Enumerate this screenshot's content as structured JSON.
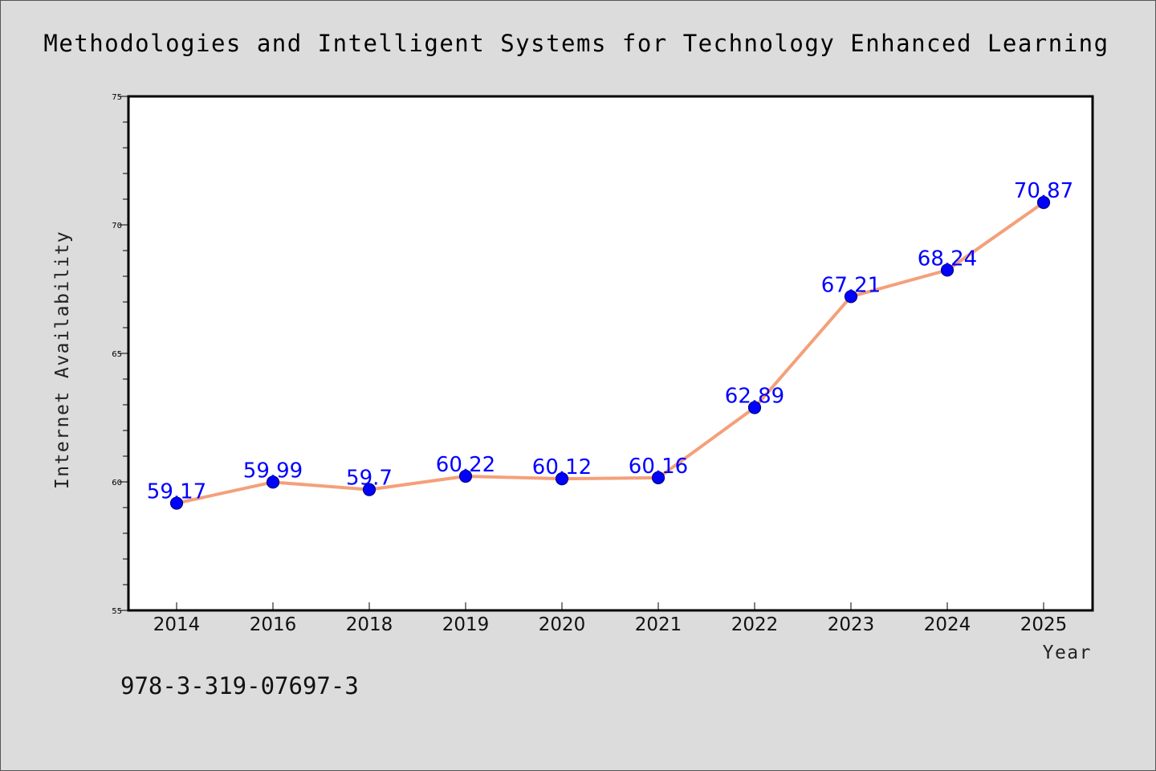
{
  "footnote": "978-3-319-07697-3",
  "chart_data": {
    "type": "line",
    "title": "Methodologies and Intelligent Systems for Technology Enhanced Learning",
    "xlabel": "Year",
    "ylabel": "Internet Availability",
    "categories": [
      "2014",
      "2016",
      "2018",
      "2019",
      "2020",
      "2021",
      "2022",
      "2023",
      "2024",
      "2025"
    ],
    "series": [
      {
        "values": [
          59.17,
          59.99,
          59.7,
          60.22,
          60.12,
          60.16,
          62.89,
          67.21,
          68.24,
          70.87
        ],
        "data_labels": [
          "59.17",
          "59.99",
          "59.7",
          "60.22",
          "60.12",
          "60.16",
          "62.89",
          "67.21",
          "68.24",
          "70.87"
        ]
      }
    ],
    "ylim": [
      55,
      75
    ],
    "yticks": [
      "55",
      "60",
      "65",
      "70",
      "75"
    ],
    "grid": false,
    "legend": "none",
    "colors": {
      "line": "#f4a07a",
      "marker_fill": "#0000ff",
      "marker_edge": "#000080",
      "label": "#0000ff",
      "background": "#dcdcdc",
      "plot_background": "#ffffff"
    }
  }
}
